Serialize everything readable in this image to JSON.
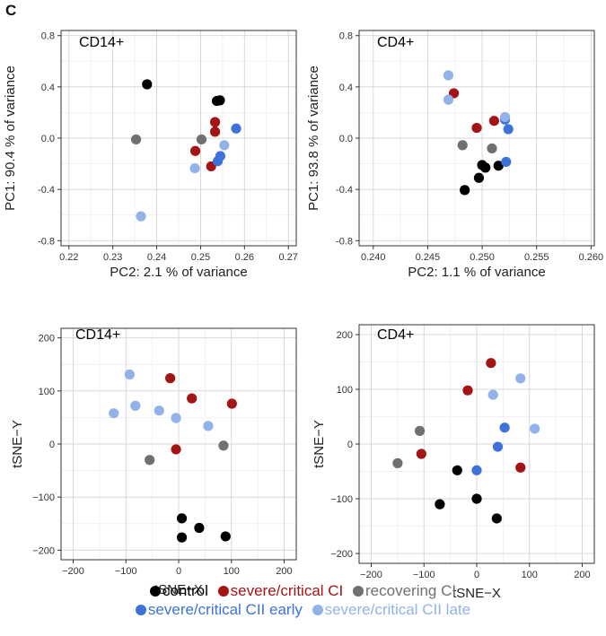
{
  "panel_label": "C",
  "legend": [
    {
      "key": "control",
      "label": "control",
      "color": "#000000"
    },
    {
      "key": "severe_ci",
      "label": "severe/critical CI",
      "color": "#a31414"
    },
    {
      "key": "recovering_ci",
      "label": "recovering CI",
      "color": "#707070"
    },
    {
      "key": "severe_cii_early",
      "label": "severe/critical CII early",
      "color": "#3d73d9"
    },
    {
      "key": "severe_cii_late",
      "label": "severe/critical CII late",
      "color": "#92b2ea"
    }
  ],
  "chart_data": [
    {
      "type": "scatter",
      "title": "CD14+",
      "xlabel": "PC2:  2.1 % of variance",
      "ylabel": "PC1:  90.4 % of variance",
      "xlim": [
        0.2182,
        0.2718
      ],
      "ylim": [
        -0.84,
        0.84
      ],
      "xticks": [
        0.22,
        0.23,
        0.24,
        0.25,
        0.26,
        0.27
      ],
      "xtick_labels": [
        "0.22",
        "0.23",
        "0.24",
        "0.25",
        "0.26",
        "0.27"
      ],
      "yticks": [
        -0.8,
        -0.4,
        0.0,
        0.4,
        0.8
      ],
      "ytick_labels": [
        "-0.8",
        "-0.4",
        "0.0",
        "0.4",
        "0.8"
      ],
      "grid": true,
      "series": [
        {
          "group": "control",
          "points": [
            [
              0.2378,
              0.42
            ],
            [
              0.2537,
              0.29
            ],
            [
              0.2544,
              0.295
            ]
          ]
        },
        {
          "group": "severe_ci",
          "points": [
            [
              0.2533,
              0.125
            ],
            [
              0.2533,
              0.05
            ],
            [
              0.2488,
              -0.1
            ],
            [
              0.2524,
              -0.22
            ]
          ]
        },
        {
          "group": "recovering_ci",
          "points": [
            [
              0.2353,
              -0.01
            ],
            [
              0.2502,
              -0.01
            ]
          ]
        },
        {
          "group": "severe_cii_early",
          "points": [
            [
              0.2581,
              0.075
            ],
            [
              0.2545,
              -0.14
            ],
            [
              0.2539,
              -0.18
            ]
          ]
        },
        {
          "group": "severe_cii_late",
          "points": [
            [
              0.2364,
              -0.61
            ],
            [
              0.2487,
              -0.235
            ],
            [
              0.2554,
              -0.055
            ]
          ]
        }
      ]
    },
    {
      "type": "scatter",
      "title": "CD4+",
      "xlabel": "PC2:  1.1 % of variance",
      "ylabel": "PC1:  93.8 % of variance",
      "xlim": [
        0.2387,
        0.2603
      ],
      "ylim": [
        -0.84,
        0.84
      ],
      "xticks": [
        0.24,
        0.245,
        0.25,
        0.255,
        0.26
      ],
      "xtick_labels": [
        "0.240",
        "0.245",
        "0.250",
        "0.255",
        "0.260"
      ],
      "yticks": [
        -0.8,
        -0.4,
        0.0,
        0.4,
        0.8
      ],
      "ytick_labels": [
        "-0.8",
        "-0.4",
        "0.0",
        "0.4",
        "0.8"
      ],
      "grid": true,
      "series": [
        {
          "group": "control",
          "points": [
            [
              0.2484,
              -0.405
            ],
            [
              0.2497,
              -0.31
            ],
            [
              0.25,
              -0.21
            ],
            [
              0.2503,
              -0.23
            ],
            [
              0.2515,
              -0.215
            ]
          ]
        },
        {
          "group": "severe_ci",
          "points": [
            [
              0.2474,
              0.35
            ],
            [
              0.2495,
              0.08
            ],
            [
              0.2511,
              0.135
            ]
          ]
        },
        {
          "group": "recovering_ci",
          "points": [
            [
              0.2482,
              -0.055
            ],
            [
              0.2509,
              -0.08
            ]
          ]
        },
        {
          "group": "severe_cii_early",
          "points": [
            [
              0.2521,
              0.145
            ],
            [
              0.2524,
              0.07
            ],
            [
              0.2522,
              -0.185
            ]
          ]
        },
        {
          "group": "severe_cii_late",
          "points": [
            [
              0.2469,
              0.49
            ],
            [
              0.2469,
              0.3
            ],
            [
              0.2521,
              0.165
            ]
          ]
        }
      ]
    },
    {
      "type": "scatter",
      "title": "CD14+",
      "xlabel": "tSNE−X",
      "ylabel": "tSNE−Y",
      "xlim": [
        -223,
        223
      ],
      "ylim": [
        -218,
        218
      ],
      "xticks": [
        -200,
        -100,
        0,
        100,
        200
      ],
      "xtick_labels": [
        "−200",
        "−100",
        "0",
        "100",
        "200"
      ],
      "yticks": [
        -200,
        -100,
        0,
        100,
        200
      ],
      "ytick_labels": [
        "−200",
        "−100",
        "0",
        "100",
        "200"
      ],
      "grid": true,
      "series": [
        {
          "group": "control",
          "points": [
            [
              6,
              -140
            ],
            [
              6,
              -176
            ],
            [
              39,
              -158
            ],
            [
              89,
              -174
            ]
          ]
        },
        {
          "group": "severe_ci",
          "points": [
            [
              -16,
              124
            ],
            [
              25,
              86
            ],
            [
              101,
              76
            ],
            [
              -5,
              -10
            ]
          ]
        },
        {
          "group": "recovering_ci",
          "points": [
            [
              -55,
              -30
            ],
            [
              85,
              -3
            ]
          ]
        },
        {
          "group": "severe_cii_early",
          "points": []
        },
        {
          "group": "severe_cii_late",
          "points": [
            [
              -93,
              131
            ],
            [
              -82,
              72
            ],
            [
              -123,
              58
            ],
            [
              -37,
              63
            ],
            [
              -5,
              49
            ],
            [
              56,
              34
            ]
          ]
        }
      ]
    },
    {
      "type": "scatter",
      "title": "CD4+",
      "xlabel": "tSNE−X",
      "ylabel": "tSNE−Y",
      "xlim": [
        -223,
        223
      ],
      "ylim": [
        -218,
        218
      ],
      "xticks": [
        -200,
        -100,
        0,
        100,
        200
      ],
      "xtick_labels": [
        "−200",
        "−100",
        "0",
        "100",
        "200"
      ],
      "yticks": [
        -200,
        -100,
        0,
        100,
        200
      ],
      "ytick_labels": [
        "−200",
        "−100",
        "0",
        "100",
        "200"
      ],
      "grid": true,
      "series": [
        {
          "group": "control",
          "points": [
            [
              -70,
              -110
            ],
            [
              -37,
              -48
            ],
            [
              0,
              -100
            ],
            [
              38,
              -136
            ]
          ]
        },
        {
          "group": "severe_ci",
          "points": [
            [
              -17,
              98
            ],
            [
              27,
              148
            ],
            [
              -105,
              -18
            ],
            [
              83,
              -43
            ]
          ]
        },
        {
          "group": "recovering_ci",
          "points": [
            [
              -108,
              24
            ],
            [
              -150,
              -35
            ]
          ]
        },
        {
          "group": "severe_cii_early",
          "points": [
            [
              53,
              30
            ],
            [
              40,
              -5
            ],
            [
              0,
              -48
            ]
          ]
        },
        {
          "group": "severe_cii_late",
          "points": [
            [
              31,
              90
            ],
            [
              83,
              120
            ],
            [
              110,
              28
            ]
          ]
        }
      ]
    }
  ]
}
